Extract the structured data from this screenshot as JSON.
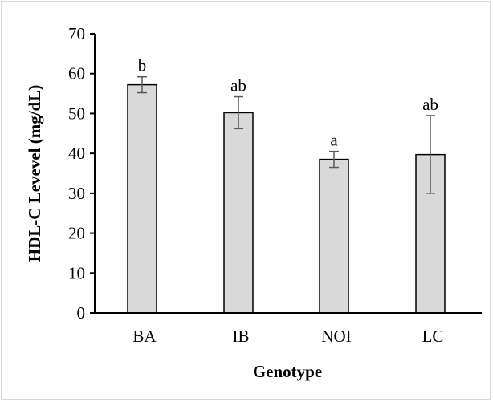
{
  "chart_data": {
    "type": "bar",
    "title": "",
    "xlabel": "Genotype",
    "ylabel": "HDL-C Levevel (mg/dL)",
    "categories": [
      "BA",
      "IB",
      "NOI",
      "LC"
    ],
    "values": [
      57.2,
      50.2,
      38.5,
      39.7
    ],
    "error_low": [
      55.2,
      46.2,
      36.5,
      30.0
    ],
    "error_high": [
      59.2,
      54.2,
      40.5,
      49.5
    ],
    "significance_labels": [
      "b",
      "ab",
      "a",
      "ab"
    ],
    "ylim": [
      0,
      70
    ],
    "yticks": [
      0,
      10,
      20,
      30,
      40,
      50,
      60,
      70
    ],
    "grid": false,
    "legend": "none",
    "colors": {
      "bar_fill": "#d9d9d9",
      "bar_stroke": "#000000",
      "error_bar": "#595959",
      "frame": "#d9d9d9"
    }
  }
}
